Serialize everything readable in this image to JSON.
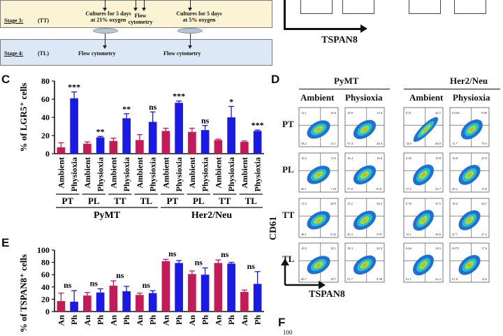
{
  "figure": {
    "stage3": {
      "label": "Stage 3:",
      "code": "(TT)",
      "left_text": "Cultures for 5 days\nat 21% oxygen",
      "mid_text": "Flow\ncytometry",
      "right_text": "Cultures for 5 days\nat 5% oxygen"
    },
    "stage4": {
      "label": "Stage 4:",
      "code": "(TL)",
      "left_text": "Flow cytometry",
      "right_text": "Flow cytometry"
    },
    "top_right": {
      "xlabel": "TSPAN8"
    },
    "panel_c": {
      "letter": "C"
    },
    "panel_d": {
      "letter": "D",
      "groups": [
        "PyMT",
        "Her2/Neu"
      ],
      "conditions": [
        "Ambient",
        "Physioxia",
        "Ambient",
        "Physioxia"
      ],
      "rows": [
        "PT",
        "PL",
        "TT",
        "TL"
      ],
      "ylabel": "CD61",
      "xlabel": "TSPAN8",
      "quadrant_values": [
        [
          "12.1",
          "16.6",
          "10.8",
          "11.6",
          "0.51",
          "44.7",
          "0.054",
          "8.89"
        ],
        [
          "58.2",
          "13.1",
          "57.4",
          "20.4",
          "14.9",
          "40.0",
          "11.7",
          "79.3"
        ],
        [
          "10.2",
          "13.5",
          "16.4",
          "16.6",
          "0.36",
          "18.8",
          "16.8",
          "25.9"
        ],
        [
          "66.1",
          "7.24",
          "57.8",
          "8.01",
          "57.2",
          "23.7",
          "26.2",
          "15.6"
        ],
        [
          "13.5",
          "28.9",
          "15.2",
          "30.2",
          "0.76",
          "47.5",
          "10.4",
          "44.7"
        ],
        [
          "48.1",
          "9.43",
          "43.3",
          "9.97",
          "15.1",
          "36.6",
          "27.7",
          "27.2"
        ],
        [
          "10.5",
          "18.1",
          "18.3",
          "22.9",
          "0.66",
          "16.5",
          "0.075",
          "17.6"
        ],
        [
          "60.7",
          "10.7",
          "51.7",
          "8.98",
          "61.1",
          "22.2",
          "67.8",
          "14.6"
        ]
      ]
    },
    "panel_e": {
      "letter": "E"
    },
    "panel_f": {
      "letter": "F",
      "tick": "100"
    }
  },
  "chart_data": [
    {
      "type": "bar",
      "panel": "C",
      "ylabel": "% of LGR5⁺ cells",
      "ylim": [
        0,
        80
      ],
      "yticks": [
        0,
        20,
        40,
        60,
        80
      ],
      "categories": [
        "Ambient",
        "Physioxia",
        "Ambient",
        "Physioxia",
        "Ambient",
        "Physioxia",
        "Ambient",
        "Physioxia",
        "Ambient",
        "Physioxia",
        "Ambient",
        "Physioxia",
        "Ambient",
        "Physioxia",
        "Ambient",
        "Physioxia"
      ],
      "values": [
        7,
        61,
        11,
        18,
        14,
        39,
        15,
        35,
        25,
        56,
        24,
        26,
        15,
        40,
        13,
        25
      ],
      "errors": [
        5,
        7,
        2,
        1,
        3,
        5,
        6,
        11,
        3,
        2,
        4,
        5,
        1,
        12,
        1,
        1
      ],
      "colors": [
        "#c41a57",
        "#1a1ae6"
      ],
      "significance": [
        "",
        "***",
        "",
        "**",
        "",
        "**",
        "",
        "ns",
        "",
        "***",
        "",
        "ns",
        "",
        "*",
        "",
        "***"
      ],
      "stage_labels": [
        "PT",
        "PL",
        "TT",
        "TL",
        "PT",
        "PL",
        "TT",
        "TL"
      ],
      "group_labels": [
        "PyMT",
        "Her2/Neu"
      ],
      "grid": false
    },
    {
      "type": "bar",
      "panel": "E",
      "ylabel": "% of TSPAN8⁺ cells",
      "ylim": [
        0,
        100
      ],
      "yticks": [
        0,
        20,
        40,
        60,
        80,
        100
      ],
      "values": [
        17,
        16,
        26,
        31,
        42,
        33,
        27,
        30,
        82,
        79,
        61,
        60,
        79,
        78,
        32,
        45
      ],
      "errors": [
        13,
        18,
        5,
        6,
        8,
        8,
        3,
        4,
        3,
        4,
        5,
        11,
        5,
        2,
        3,
        20
      ],
      "colors": [
        "#c41a57",
        "#1a1ae6"
      ],
      "significance": [
        "ns",
        "ns",
        "ns",
        "ns",
        "ns",
        "ns",
        "ns",
        "ns"
      ],
      "truncated_labels": [
        "An",
        "Ph",
        "An",
        "Ph",
        "An",
        "Ph",
        "An",
        "Ph",
        "An",
        "Ph",
        "An",
        "Ph",
        "An",
        "Ph",
        "An",
        "Ph"
      ],
      "grid": false
    }
  ]
}
